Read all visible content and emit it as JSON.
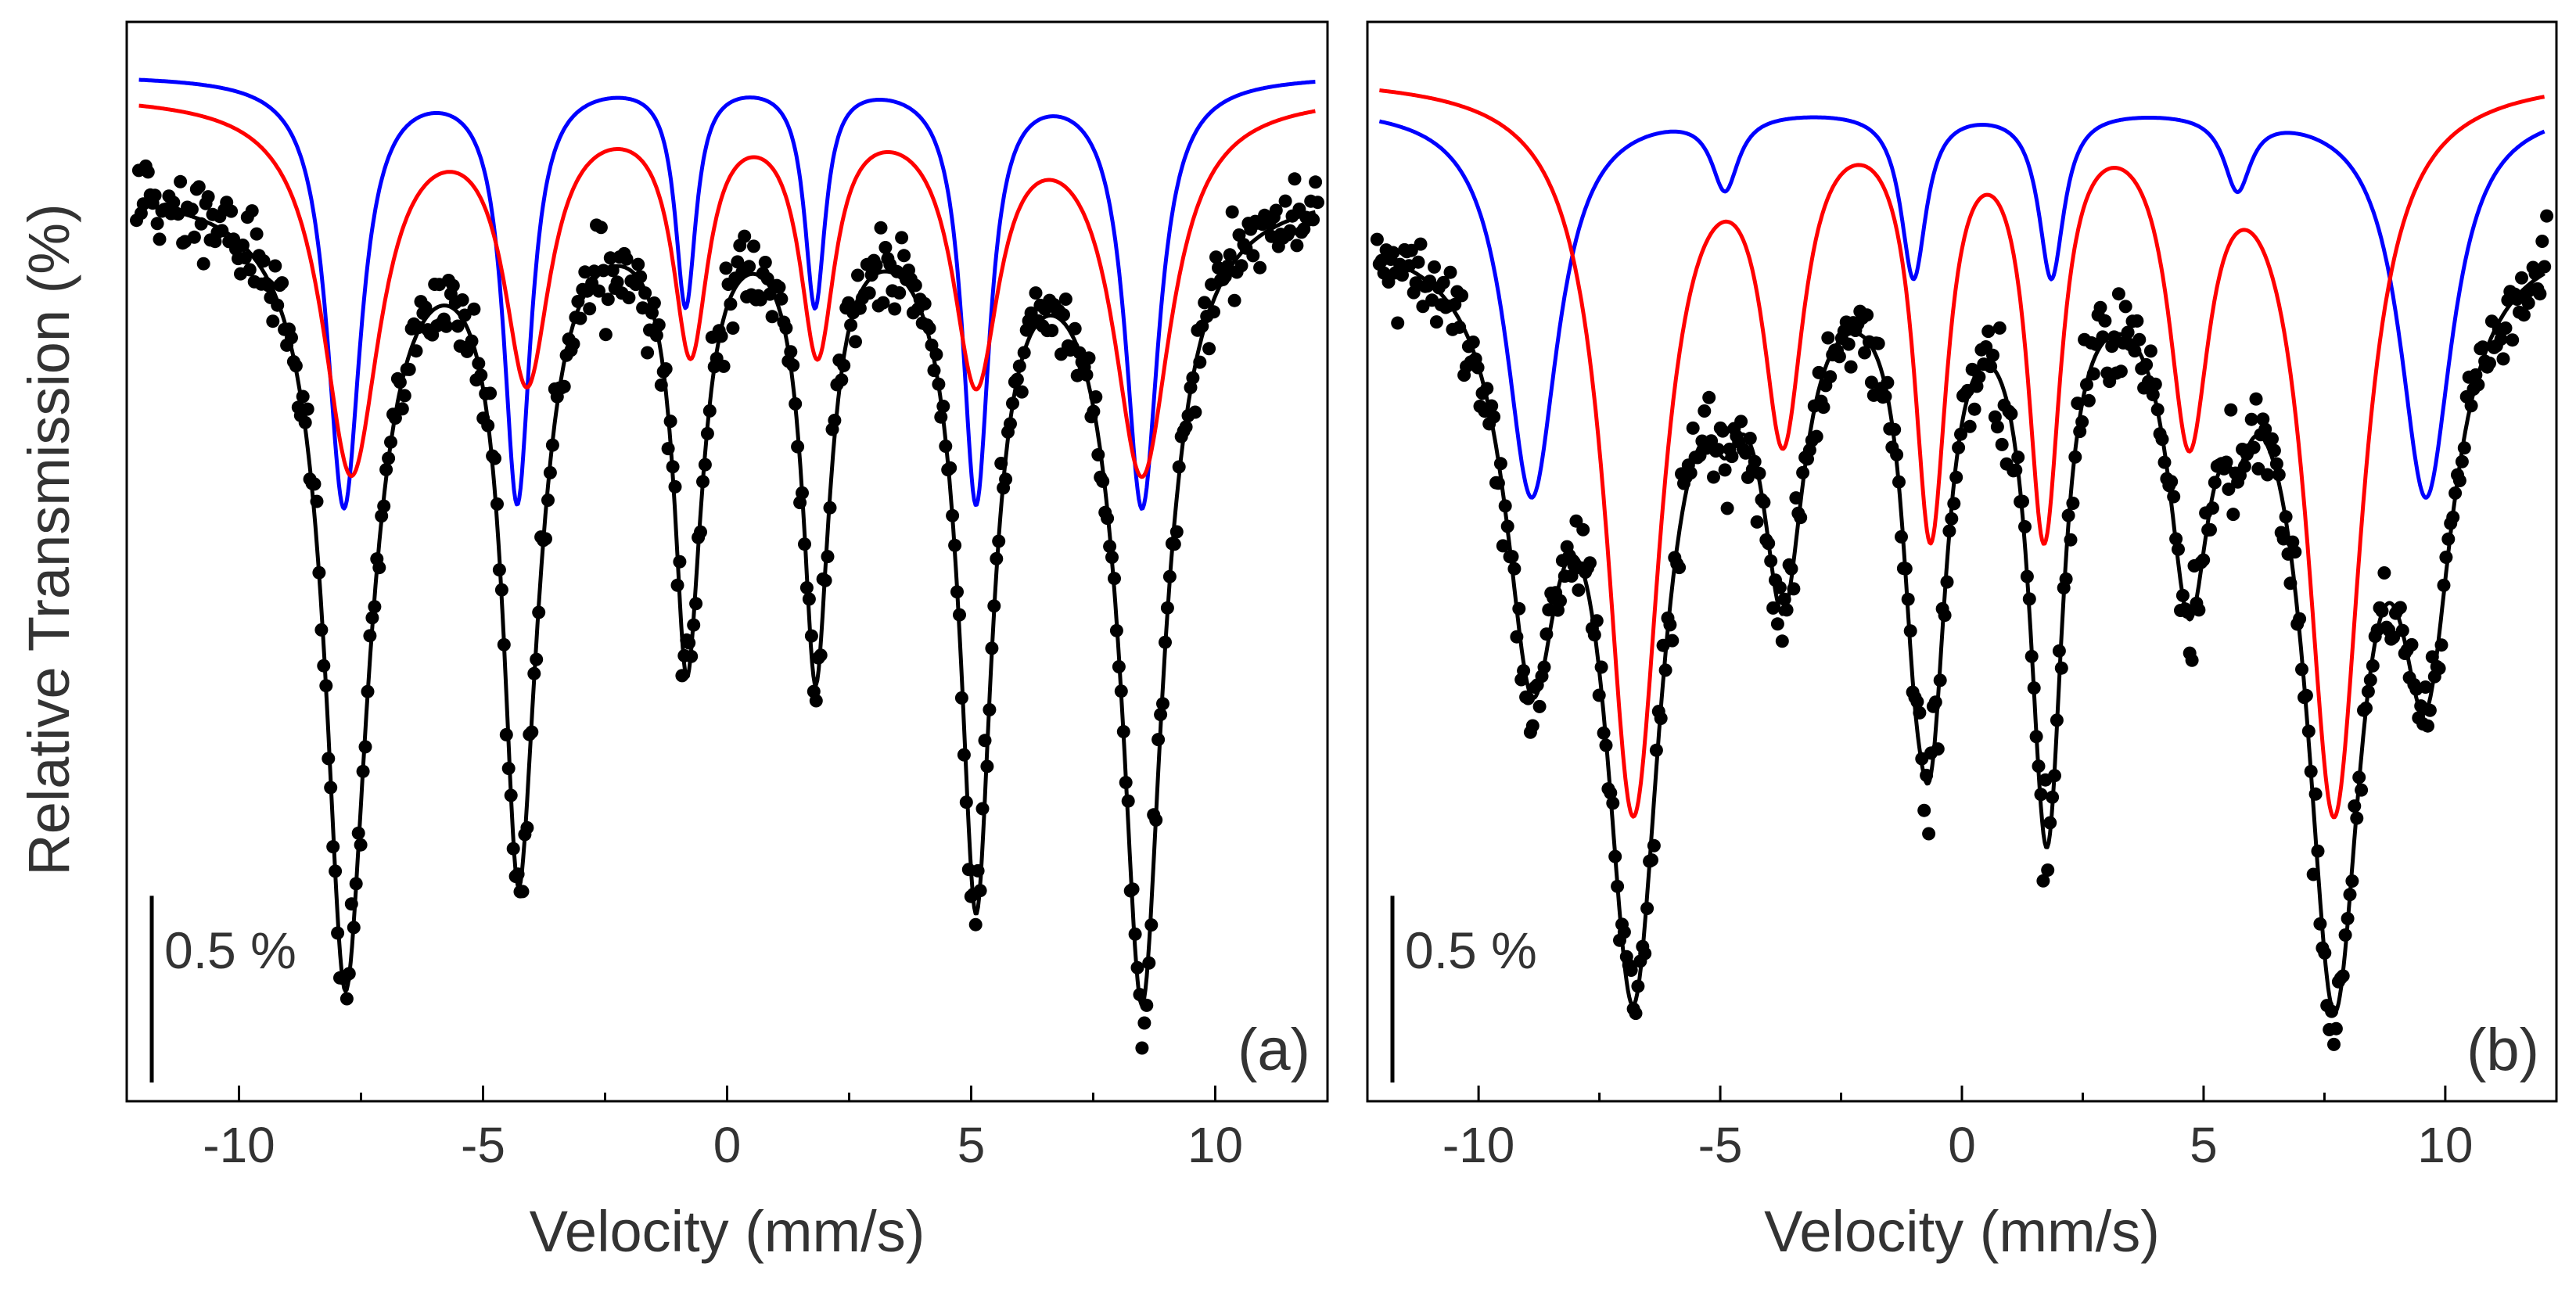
{
  "chart_data": {
    "type": "scatter",
    "y_axis_title": "Relative Transmission (%)",
    "panels": [
      {
        "id": "a",
        "panel_label": "(a)",
        "xlabel": "Velocity (mm/s)",
        "xlim": [
          -12.3,
          12.3
        ],
        "xticks": [
          -10,
          -5,
          0,
          5,
          10
        ],
        "xtick_labels": [
          "-10",
          "-5",
          "0",
          "5",
          "10"
        ],
        "ylim": [
          -2.75,
          0.14
        ],
        "y_ticks_shown": false,
        "scale_bar": {
          "value": 0.5,
          "label": "0.5 %"
        },
        "series": [
          {
            "name": "experimental data",
            "kind": "points",
            "color": "#000000",
            "baseline": -0.3,
            "noise": 0.055,
            "sites": "sum"
          },
          {
            "name": "fit (total)",
            "kind": "line",
            "color": "#000000",
            "baseline": -0.3,
            "sites": "sum"
          },
          {
            "name": "blue subspectrum",
            "kind": "line",
            "color": "#0000ff",
            "baseline": 0.0,
            "sites": [
              1
            ]
          },
          {
            "name": "red subspectrum",
            "kind": "line",
            "color": "#ff0000",
            "baseline": -0.05,
            "sites": [
              0
            ]
          }
        ],
        "sites": [
          {
            "color": "#ff0000",
            "lines": [
              {
                "x": -7.7,
                "depth": 1.0,
                "width": 0.72
              },
              {
                "x": -4.1,
                "depth": 0.73,
                "width": 0.58
              },
              {
                "x": -0.75,
                "depth": 0.65,
                "width": 0.44
              },
              {
                "x": 1.85,
                "depth": 0.65,
                "width": 0.44
              },
              {
                "x": 5.1,
                "depth": 0.73,
                "width": 0.58
              },
              {
                "x": 8.5,
                "depth": 1.0,
                "width": 0.72
              }
            ]
          },
          {
            "color": "#0000ff",
            "lines": [
              {
                "x": -7.85,
                "depth": 1.15,
                "width": 0.42
              },
              {
                "x": -4.3,
                "depth": 1.13,
                "width": 0.34
              },
              {
                "x": -0.85,
                "depth": 0.6,
                "width": 0.26
              },
              {
                "x": 1.8,
                "depth": 0.6,
                "width": 0.26
              },
              {
                "x": 5.1,
                "depth": 1.13,
                "width": 0.34
              },
              {
                "x": 8.5,
                "depth": 1.15,
                "width": 0.42
              }
            ]
          }
        ]
      },
      {
        "id": "b",
        "panel_label": "(b)",
        "xlabel": "Velocity (mm/s)",
        "xlim": [
          -12.3,
          12.3
        ],
        "xticks": [
          -10,
          -5,
          0,
          5,
          10
        ],
        "xtick_labels": [
          "-10",
          "-5",
          "0",
          "5",
          "10"
        ],
        "ylim": [
          -2.75,
          0.14
        ],
        "y_ticks_shown": false,
        "scale_bar": {
          "value": 0.5,
          "label": "0.5 %"
        },
        "series": [
          {
            "name": "experimental data",
            "kind": "points",
            "color": "#000000",
            "baseline": -0.4,
            "noise": 0.055,
            "sites": "sum"
          },
          {
            "name": "fit (total)",
            "kind": "line",
            "color": "#000000",
            "baseline": -0.4,
            "sites": "sum"
          },
          {
            "name": "blue subspectrum",
            "kind": "line",
            "color": "#0000ff",
            "baseline": -0.08,
            "sites": [
              0
            ]
          },
          {
            "name": "red subspectrum",
            "kind": "line",
            "color": "#ff0000",
            "baseline": 0.0,
            "sites": [
              1
            ]
          }
        ],
        "sites": [
          {
            "color": "#0000ff",
            "lines": [
              {
                "x": -8.9,
                "depth": 1.05,
                "width": 0.66
              },
              {
                "x": -4.9,
                "depth": 0.2,
                "width": 0.34
              },
              {
                "x": -1.0,
                "depth": 0.45,
                "width": 0.32
              },
              {
                "x": 1.85,
                "depth": 0.45,
                "width": 0.32
              },
              {
                "x": 5.7,
                "depth": 0.2,
                "width": 0.34
              },
              {
                "x": 9.6,
                "depth": 1.05,
                "width": 0.66
              }
            ]
          },
          {
            "color": "#ff0000",
            "lines": [
              {
                "x": -6.8,
                "depth": 1.95,
                "width": 0.7
              },
              {
                "x": -3.7,
                "depth": 0.87,
                "width": 0.52
              },
              {
                "x": -0.65,
                "depth": 1.15,
                "width": 0.42
              },
              {
                "x": 1.7,
                "depth": 1.15,
                "width": 0.42
              },
              {
                "x": 4.7,
                "depth": 0.87,
                "width": 0.52
              },
              {
                "x": 7.7,
                "depth": 1.95,
                "width": 0.7
              }
            ]
          }
        ]
      }
    ]
  }
}
